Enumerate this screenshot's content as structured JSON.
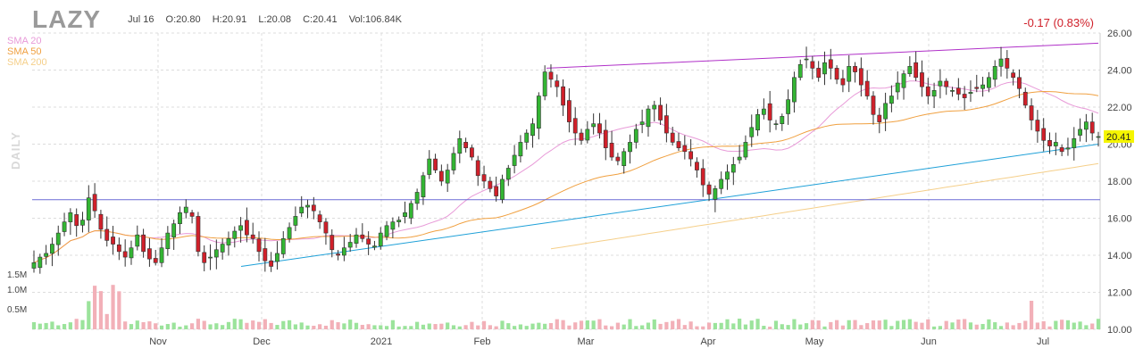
{
  "header": {
    "ticker": "LAZY",
    "date": "Jul 16",
    "open": "O:20.80",
    "high": "H:20.91",
    "low": "L:20.08",
    "close": "C:20.41",
    "volume": "Vol:106.84K",
    "change": "-0.17 (0.83%)",
    "daily_label": "DAILY"
  },
  "legend": [
    {
      "label": "SMA 20",
      "color": "#e89ad8"
    },
    {
      "label": "SMA 50",
      "color": "#f0a040"
    },
    {
      "label": "SMA 200",
      "color": "#f5cf8a"
    }
  ],
  "colors": {
    "up": "#33b533",
    "down": "#d0202a",
    "vol_up": "#9be39b",
    "vol_down": "#f2b0b8",
    "trend_purple": "#b030c8",
    "trend_blue": "#1ea0d8",
    "horizontal": "#6b6bd6",
    "grid": "#dcdcdc",
    "last_price_bg": "#f5f500"
  },
  "chart_data": {
    "type": "candlestick",
    "title": "LAZY",
    "yaxis": {
      "min": 10,
      "max": 26,
      "ticks": [
        "26.00",
        "24.00",
        "22.00",
        "20.00",
        "18.00",
        "16.00",
        "14.00",
        "12.00",
        "10.00"
      ]
    },
    "volume_axis": {
      "ticks": [
        "1.5M",
        "1.0M",
        "0.5M"
      ]
    },
    "x_labels": [
      "Nov",
      "Dec",
      "2021",
      "Feb",
      "Mar",
      "Apr",
      "May",
      "Jun",
      "Jul"
    ],
    "last_price": "20.41",
    "horizontal_line": 17.0,
    "trendlines": [
      {
        "name": "upper",
        "from": {
          "x": "2021-02-16",
          "y": 24.1
        },
        "to": {
          "x": "2021-07-16",
          "y": 25.45
        }
      },
      {
        "name": "lower",
        "from": {
          "x": "2020-11-24",
          "y": 13.4
        },
        "to": {
          "x": "2021-07-16",
          "y": 20.0
        }
      }
    ],
    "ohlc_closes": [
      13.6,
      13.9,
      14.1,
      14.6,
      15.2,
      15.8,
      16.3,
      15.6,
      15.9,
      17.1,
      16.4,
      15.4,
      14.8,
      14.6,
      14.2,
      13.9,
      14.4,
      15.1,
      14.2,
      13.8,
      13.6,
      14.4,
      15.2,
      15.7,
      16.3,
      16.6,
      16.1,
      14.2,
      13.6,
      13.9,
      14.3,
      14.6,
      14.9,
      15.3,
      15.6,
      15.1,
      14.9,
      14.2,
      13.7,
      13.4,
      14.1,
      14.9,
      15.5,
      16.1,
      16.6,
      16.7,
      16.4,
      15.8,
      15.2,
      14.3,
      14.0,
      14.4,
      14.7,
      15.1,
      14.9,
      14.6,
      14.5,
      15.2,
      15.6,
      15.8,
      15.9,
      16.3,
      16.8,
      17.4,
      18.3,
      19.2,
      18.6,
      18.0,
      18.6,
      19.5,
      20.3,
      19.8,
      19.3,
      18.3,
      18.0,
      17.6,
      17.2,
      18.1,
      18.7,
      19.4,
      20.1,
      20.6,
      21.1,
      22.6,
      23.9,
      23.5,
      23.1,
      22.1,
      21.2,
      20.6,
      20.2,
      20.8,
      21.1,
      20.6,
      19.8,
      19.3,
      19.1,
      19.6,
      20.1,
      20.8,
      21.2,
      21.9,
      22.1,
      21.3,
      20.6,
      20.1,
      19.8,
      19.6,
      19.2,
      18.6,
      17.8,
      17.3,
      17.6,
      18.1,
      18.5,
      18.9,
      19.3,
      20.1,
      20.9,
      21.6,
      21.9,
      21.3,
      21.1,
      21.5,
      22.4,
      23.6,
      24.3,
      24.6,
      24.1,
      23.6,
      24.4,
      24.1,
      23.5,
      23.2,
      24.2,
      23.9,
      23.2,
      22.6,
      21.6,
      21.2,
      22.2,
      22.6,
      23.3,
      23.8,
      24.2,
      23.6,
      23.1,
      22.6,
      22.9,
      23.4,
      23.1,
      22.9,
      22.7,
      22.5,
      22.8,
      23.0,
      23.2,
      23.6,
      24.2,
      24.6,
      24.1,
      23.6,
      23.0,
      22.1,
      21.3,
      20.7,
      20.2,
      19.9,
      20.1,
      19.6,
      19.8,
      20.3,
      20.8,
      21.2,
      20.6,
      20.41
    ],
    "sma_periods": [
      20,
      50,
      200
    ]
  }
}
